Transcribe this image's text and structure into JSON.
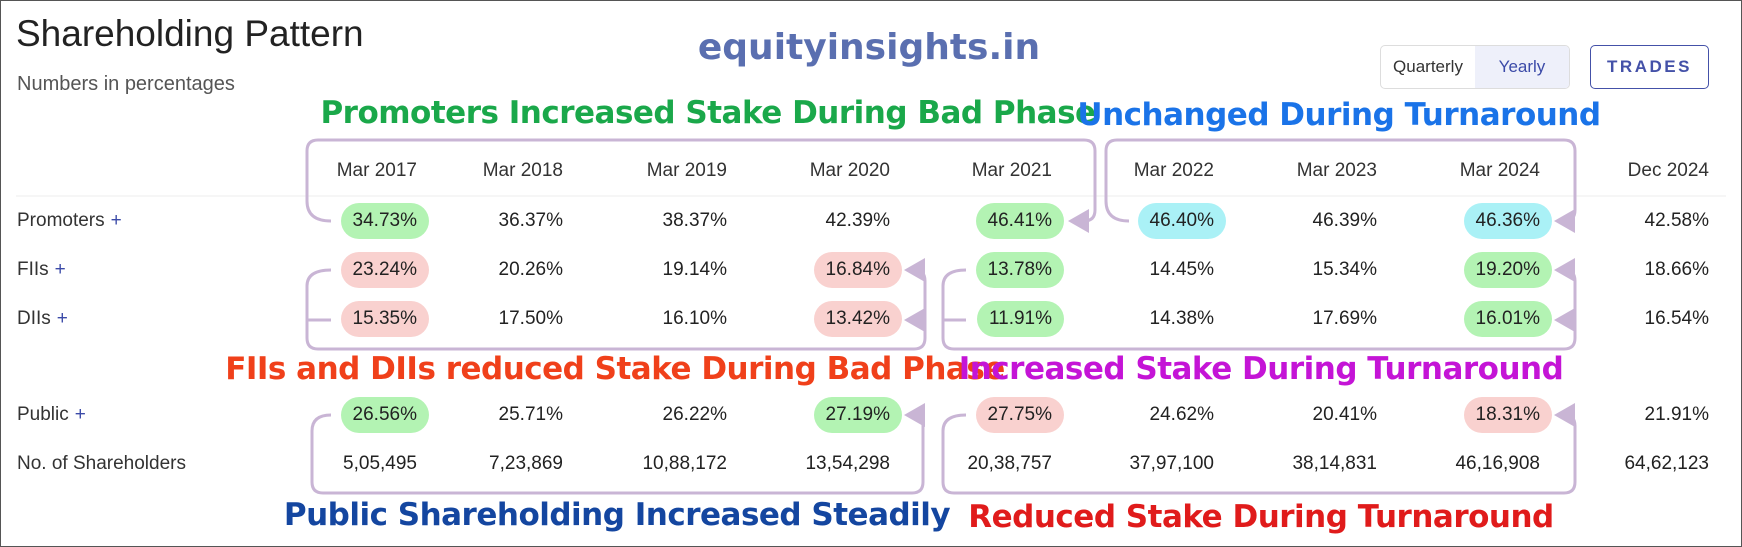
{
  "header": {
    "title": "Shareholding Pattern",
    "subtitle": "Numbers in percentages"
  },
  "watermark": "equityinsights.in",
  "controls": {
    "period_toggle": [
      "Quarterly",
      "Yearly"
    ],
    "trades_button": "TRADES"
  },
  "table": {
    "columns": [
      "Mar 2017",
      "Mar 2018",
      "Mar 2019",
      "Mar 2020",
      "Mar 2021",
      "Mar 2022",
      "Mar 2023",
      "Mar 2024",
      "Dec 2024"
    ],
    "rows": [
      {
        "label": "Promoters",
        "toggle": "+",
        "values": [
          "34.73%",
          "36.37%",
          "38.37%",
          "42.39%",
          "46.41%",
          "46.40%",
          "46.39%",
          "46.36%",
          "42.58%"
        ]
      },
      {
        "label": "FIIs",
        "toggle": "+",
        "values": [
          "23.24%",
          "20.26%",
          "19.14%",
          "16.84%",
          "13.78%",
          "14.45%",
          "15.34%",
          "19.20%",
          "18.66%"
        ]
      },
      {
        "label": "DIIs",
        "toggle": "+",
        "values": [
          "15.35%",
          "17.50%",
          "16.10%",
          "13.42%",
          "11.91%",
          "14.38%",
          "17.69%",
          "16.01%",
          "16.54%"
        ]
      },
      {
        "label": "Public",
        "toggle": "+",
        "values": [
          "26.56%",
          "25.71%",
          "26.22%",
          "27.19%",
          "27.75%",
          "24.62%",
          "20.41%",
          "18.31%",
          "21.91%"
        ]
      },
      {
        "label": "No. of Shareholders",
        "values": [
          "5,05,495",
          "7,23,869",
          "10,88,172",
          "13,54,298",
          "20,38,757",
          "37,97,100",
          "38,14,831",
          "46,16,908",
          "64,62,123"
        ]
      }
    ]
  },
  "annotations": [
    {
      "text": "Promoters Increased Stake During Bad Phase",
      "color": "#1aa84a"
    },
    {
      "text": "Unchanged During Turnaround",
      "color": "#1a73e8"
    },
    {
      "text": "FIIs and DIIs reduced Stake During Bad Phase",
      "color": "#f0401a"
    },
    {
      "text": "Increased Stake During Turnaround",
      "color": "#c414d6"
    },
    {
      "text": "Public Shareholding Increased Steadily",
      "color": "#1446a0"
    },
    {
      "text": "Reduced Stake During Turnaround",
      "color": "#e01b1b"
    }
  ]
}
